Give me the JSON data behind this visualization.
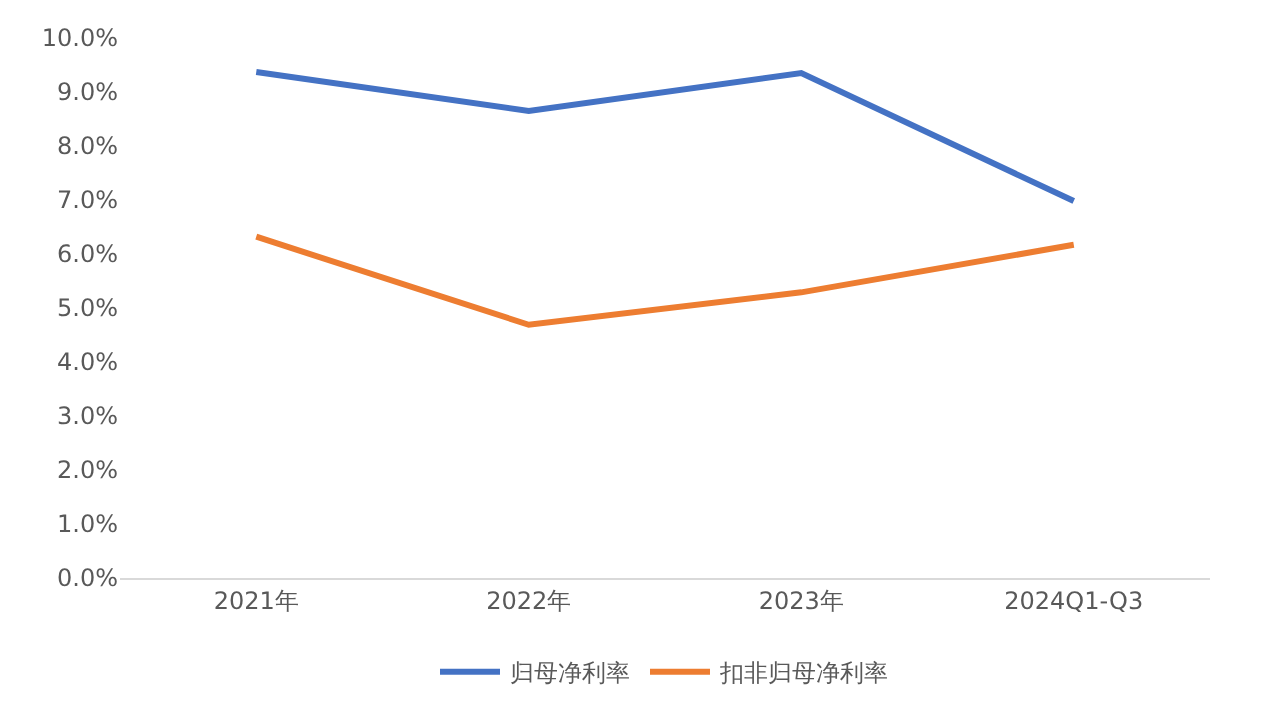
{
  "chart_data": {
    "type": "line",
    "categories": [
      "2021年",
      "2022年",
      "2023年",
      "2024Q1-Q3"
    ],
    "series": [
      {
        "name": "归母净利率",
        "color": "#4472c4",
        "values": [
          9.37,
          8.65,
          9.35,
          6.98
        ]
      },
      {
        "name": "扣非归母净利率",
        "color": "#ed7d31",
        "values": [
          6.32,
          4.69,
          5.29,
          6.17
        ]
      }
    ],
    "ylim": [
      0,
      10
    ],
    "yticks": [
      {
        "value": 0,
        "label": "0.0%"
      },
      {
        "value": 1,
        "label": "1.0%"
      },
      {
        "value": 2,
        "label": "2.0%"
      },
      {
        "value": 3,
        "label": "3.0%"
      },
      {
        "value": 4,
        "label": "4.0%"
      },
      {
        "value": 5,
        "label": "5.0%"
      },
      {
        "value": 6,
        "label": "6.0%"
      },
      {
        "value": 7,
        "label": "7.0%"
      },
      {
        "value": 8,
        "label": "8.0%"
      },
      {
        "value": 9,
        "label": "9.0%"
      },
      {
        "value": 10,
        "label": "10.0%"
      }
    ],
    "grid": false,
    "legend": "bottom",
    "marker": "none",
    "line_style": "solid"
  }
}
